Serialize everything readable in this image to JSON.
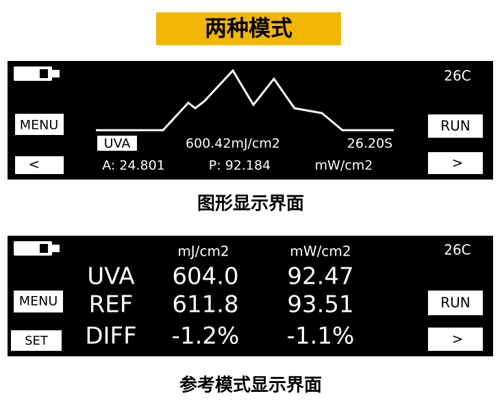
{
  "header": {
    "title": "两种模式"
  },
  "graph_screen": {
    "temperature": "26C",
    "menu": "MENU",
    "back": "<",
    "run": "RUN",
    "next": ">",
    "mode": "UVA",
    "dose": "600.42mJ/cm2",
    "time": "26.20S",
    "average": "A: 24.801",
    "peak": "P: 92.184",
    "unit": "mW/cm2",
    "caption": "图形显示界面"
  },
  "reference_screen": {
    "temperature": "26C",
    "columns": [
      "mJ/cm2",
      "mW/cm2"
    ],
    "rows": [
      [
        "UVA",
        "604.0",
        "92.47"
      ],
      [
        "REF",
        "611.8",
        "93.51"
      ],
      [
        "DIFF",
        "-1.2%",
        "-1.1%"
      ]
    ],
    "menu": "MENU",
    "set": "SET",
    "run": "RUN",
    "next": ">",
    "caption": "参考模式显示界面"
  }
}
